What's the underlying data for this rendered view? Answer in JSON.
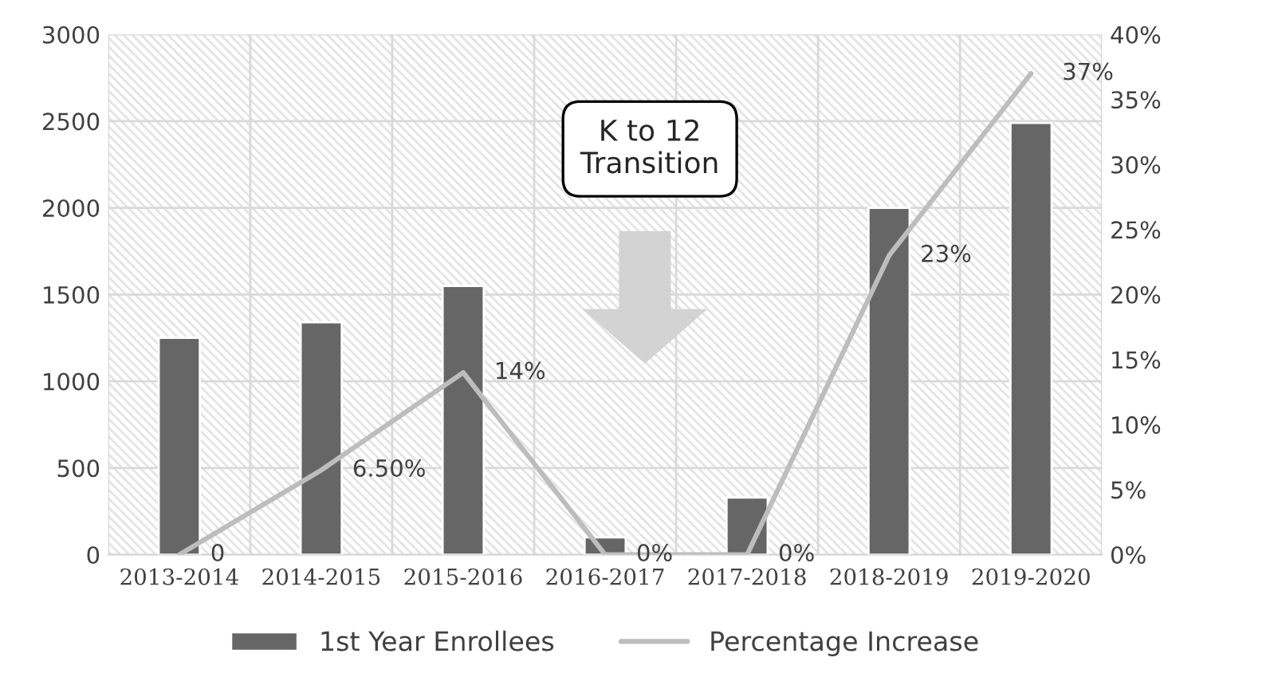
{
  "chart_data": {
    "type": "bar",
    "categories": [
      "2013-2014",
      "2014-2015",
      "2015-2016",
      "2016-2017",
      "2017-2018",
      "2018-2019",
      "2019-2020"
    ],
    "series": [
      {
        "name": "1st Year Enrollees",
        "color": "#666666",
        "values": [
          1250,
          1340,
          1550,
          100,
          330,
          2000,
          2490
        ]
      },
      {
        "name": "Percentage Increase",
        "type": "line",
        "axis": "y2",
        "color": "#bdbdbd",
        "values": [
          0,
          6.5,
          14,
          0,
          0,
          23,
          37
        ],
        "value_labels": [
          "0",
          "6.50%",
          "14%",
          "0%",
          "0%",
          "23%",
          "37%"
        ]
      }
    ],
    "ylim": [
      0,
      3000
    ],
    "yticks": [
      0,
      500,
      1000,
      1500,
      2000,
      2500,
      3000
    ],
    "y2lim": [
      0,
      40
    ],
    "y2ticks": [
      {
        "value": 0,
        "label": "0%"
      },
      {
        "value": 5,
        "label": "5%"
      },
      {
        "value": 10,
        "label": "10%"
      },
      {
        "value": 15,
        "label": "15%"
      },
      {
        "value": 20,
        "label": "20%"
      },
      {
        "value": 25,
        "label": "25%"
      },
      {
        "value": 30,
        "label": "30%"
      },
      {
        "value": 35,
        "label": "35%"
      },
      {
        "value": 40,
        "label": "40%"
      }
    ],
    "annotations": [
      "K to 12\nTransition"
    ],
    "grid": true,
    "legend": "bottom",
    "marker": "none",
    "line_style": "solid"
  }
}
